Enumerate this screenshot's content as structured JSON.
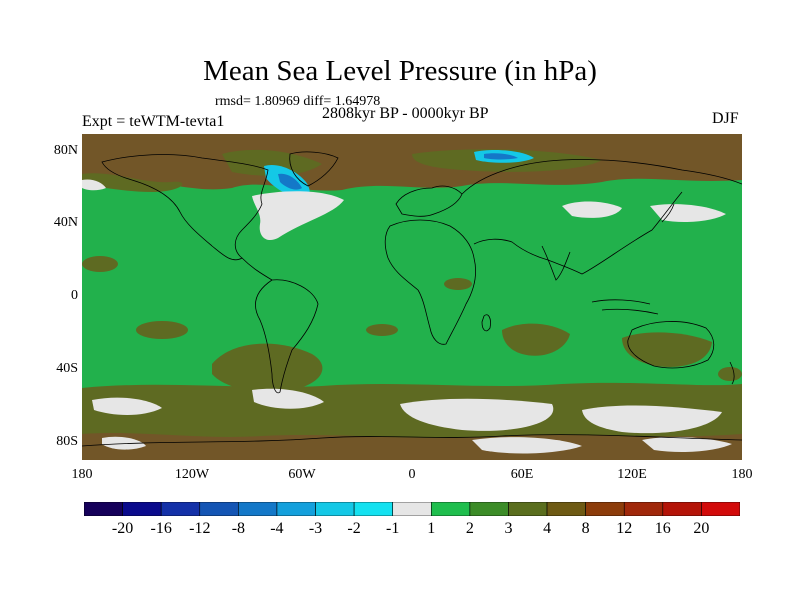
{
  "title": "Mean Sea Level Pressure (in hPa)",
  "stats": "rmsd= 1.80969 diff= 1.64978",
  "period": "2808kyr BP - 0000kyr BP",
  "experiment": "Expt = teWTM-tevta1",
  "season": "DJF",
  "lat_labels": [
    "80N",
    "40N",
    "0",
    "40S",
    "80S"
  ],
  "lon_labels": [
    "180",
    "120W",
    "60W",
    "0",
    "60E",
    "120E",
    "180"
  ],
  "colorbar": {
    "labels": [
      "-20",
      "-16",
      "-12",
      "-8",
      "-4",
      "-3",
      "-2",
      "-1",
      "1",
      "2",
      "3",
      "4",
      "8",
      "12",
      "16",
      "20"
    ],
    "colors": [
      "#15005a",
      "#0a0a8c",
      "#1431a8",
      "#1455b4",
      "#1478c8",
      "#14a0dc",
      "#14c8e6",
      "#14e1f0",
      "#e6e6e6",
      "#1fbe4e",
      "#3c8c28",
      "#5a6e1e",
      "#6e5a14",
      "#8c3c0a",
      "#a0280a",
      "#b41408",
      "#d20a0a"
    ]
  },
  "legend_colors": {
    "ocean_background": "#22b14c",
    "arctic_brown": "#725628",
    "olive": "#5e6a22",
    "near_zero": "#e6e6e6",
    "negative_light": "#14c8e6",
    "negative_dark": "#1478c8"
  }
}
